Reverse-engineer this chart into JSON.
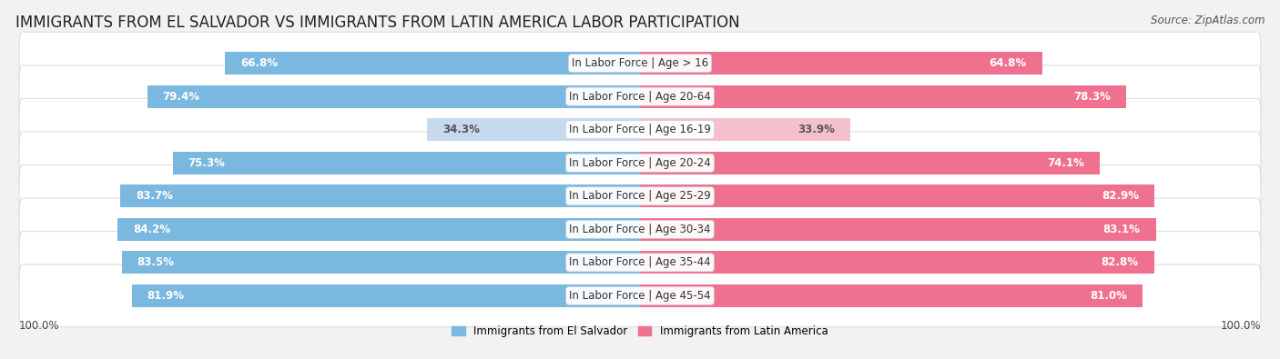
{
  "title": "IMMIGRANTS FROM EL SALVADOR VS IMMIGRANTS FROM LATIN AMERICA LABOR PARTICIPATION",
  "source": "Source: ZipAtlas.com",
  "categories": [
    "In Labor Force | Age > 16",
    "In Labor Force | Age 20-64",
    "In Labor Force | Age 16-19",
    "In Labor Force | Age 20-24",
    "In Labor Force | Age 25-29",
    "In Labor Force | Age 30-34",
    "In Labor Force | Age 35-44",
    "In Labor Force | Age 45-54"
  ],
  "el_salvador_values": [
    66.8,
    79.4,
    34.3,
    75.3,
    83.7,
    84.2,
    83.5,
    81.9
  ],
  "latin_america_values": [
    64.8,
    78.3,
    33.9,
    74.1,
    82.9,
    83.1,
    82.8,
    81.0
  ],
  "el_salvador_color": "#7ab8e0",
  "latin_america_color": "#f07090",
  "el_salvador_light_color": "#c6d9ef",
  "latin_america_light_color": "#f5c0cc",
  "row_bg_color": "#ffffff",
  "outer_bg_color": "#f2f2f2",
  "row_outline_color": "#dddddd",
  "title_fontsize": 12,
  "label_fontsize": 8.5,
  "value_fontsize": 8.5,
  "legend_label_el_salvador": "Immigrants from El Salvador",
  "legend_label_latin_america": "Immigrants from Latin America",
  "max_value": 100.0,
  "axis_label": "100.0%"
}
